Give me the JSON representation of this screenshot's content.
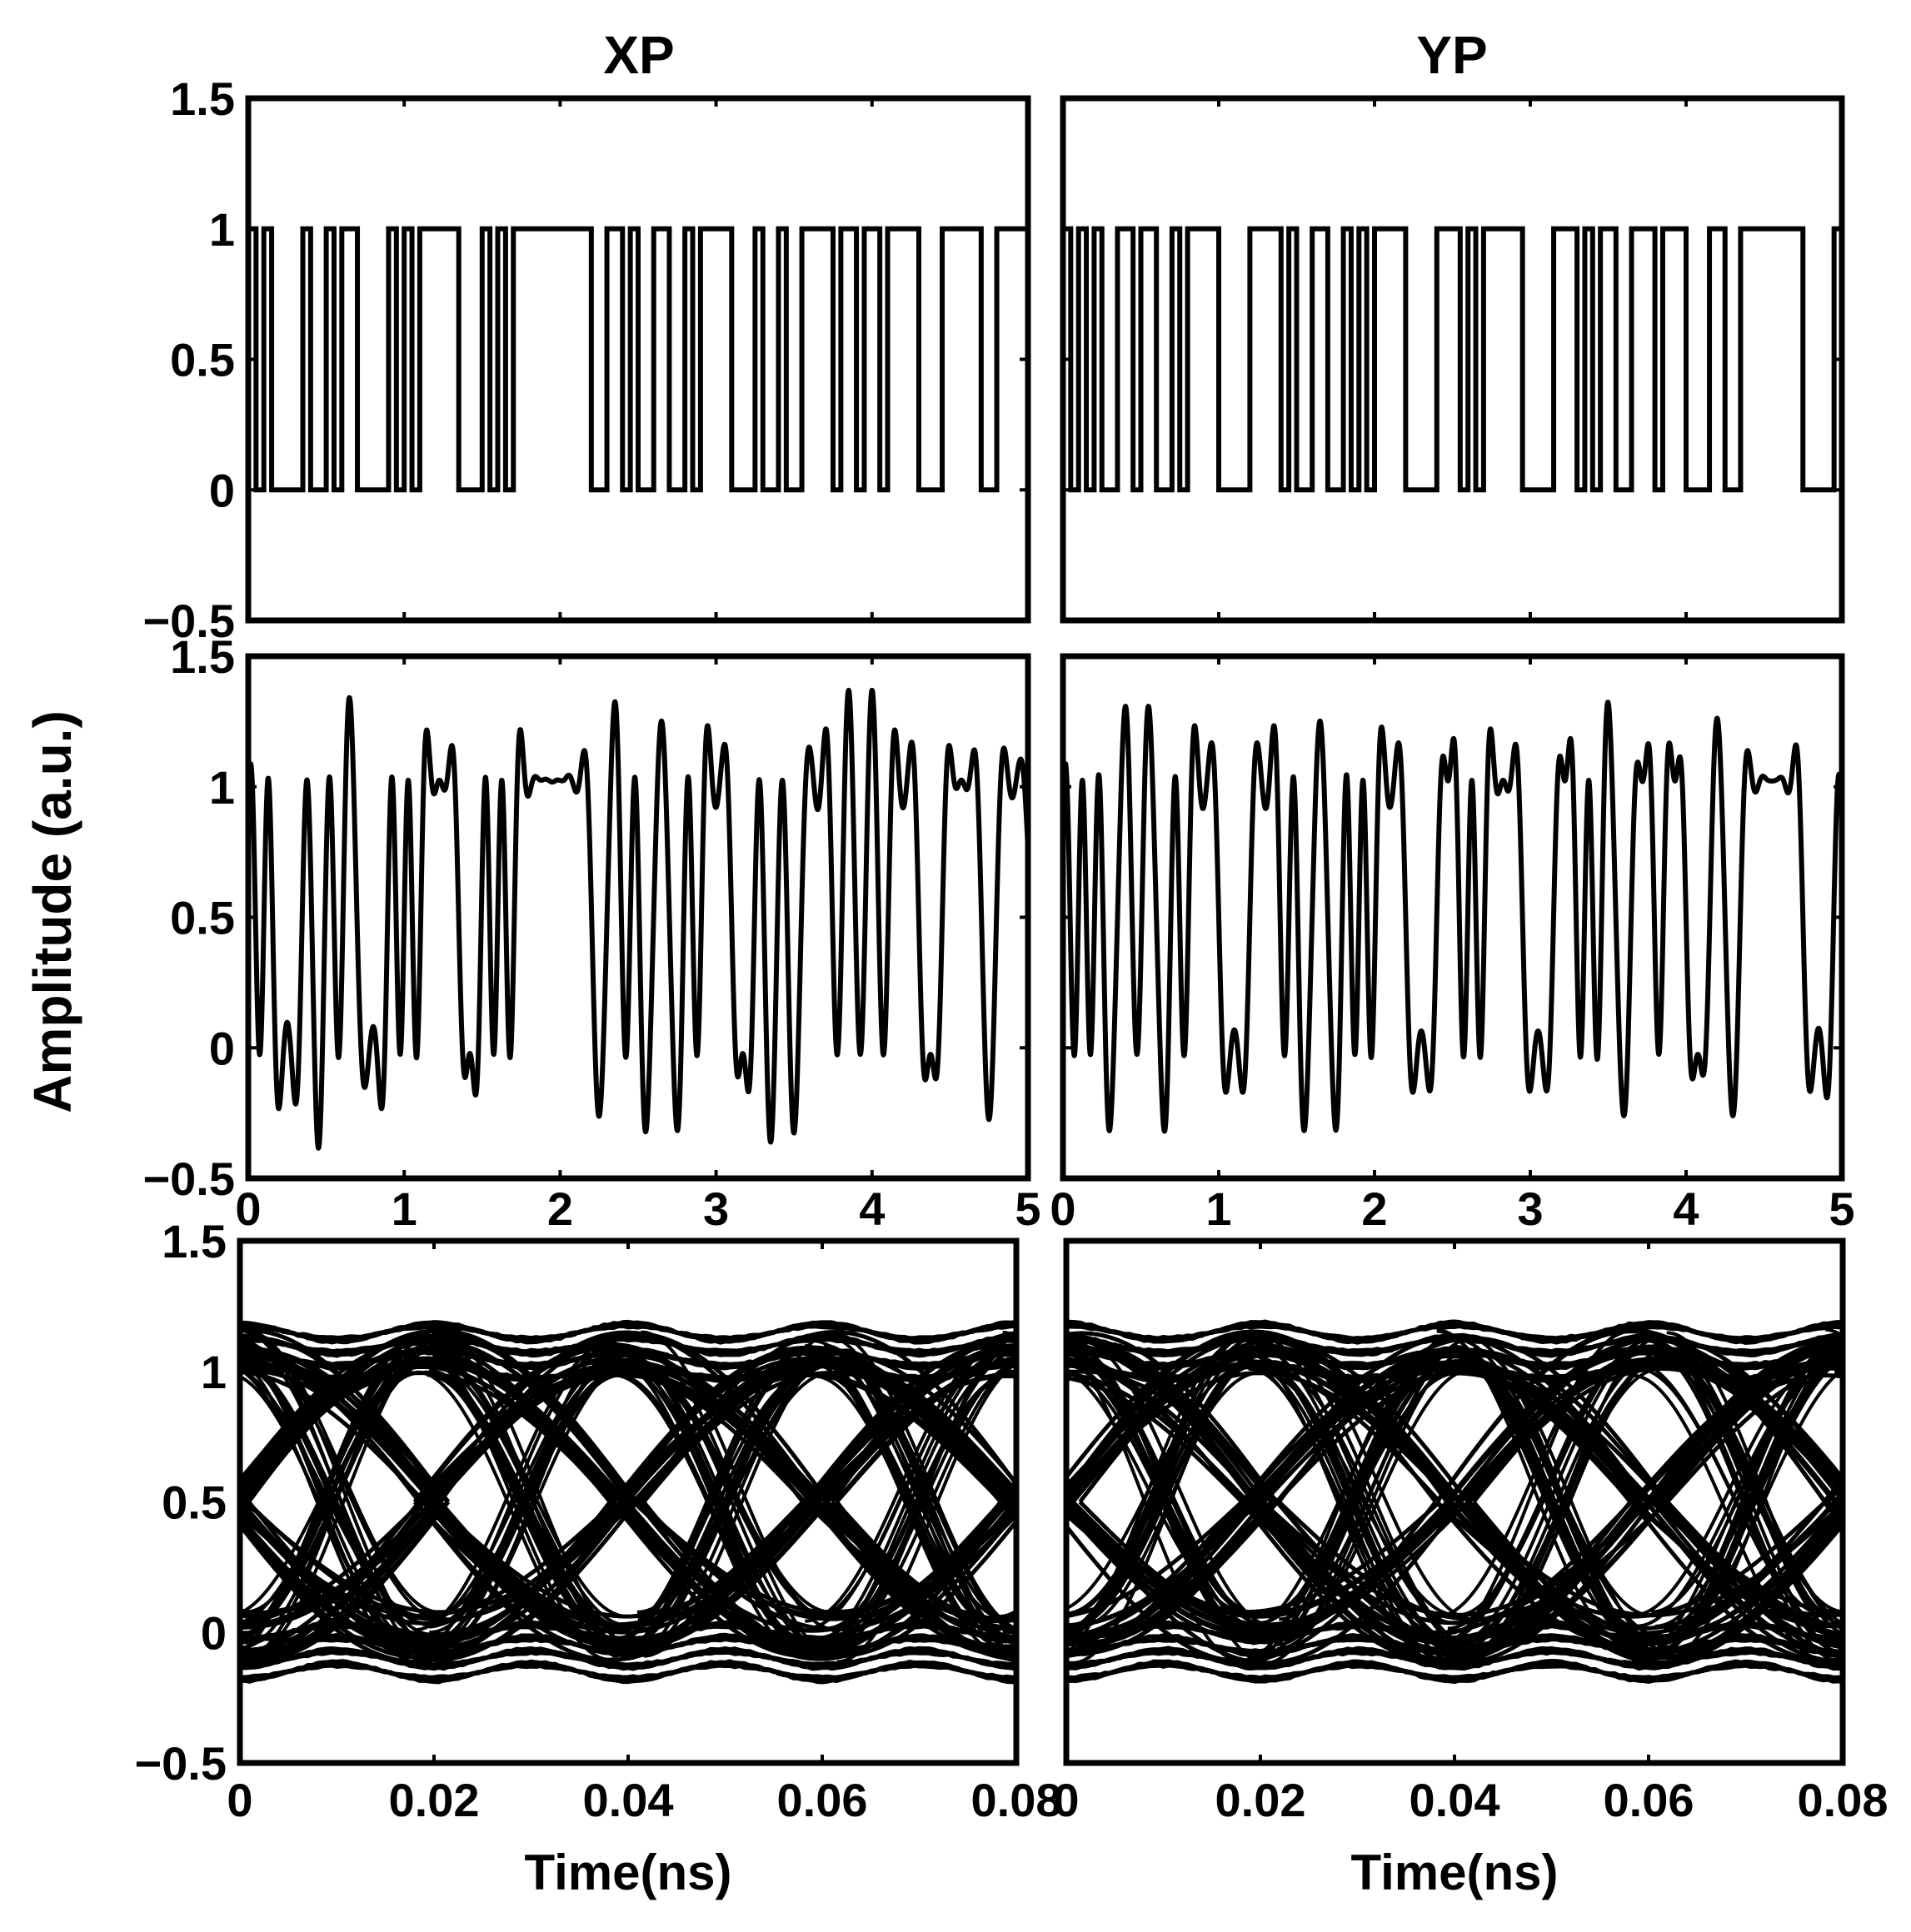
{
  "figure": {
    "ylabel": "Amplitude (a.u.)",
    "columns": [
      "XP",
      "YP"
    ],
    "line_color": "#000000",
    "background": "#ffffff"
  },
  "chart_data": [
    {
      "id": "xp-bits",
      "type": "line",
      "title": "XP",
      "xlim": [
        0,
        5
      ],
      "ylim": [
        -0.5,
        1.5
      ],
      "yticks": [
        -0.5,
        0,
        0.5,
        1,
        1.5
      ],
      "ytick_labels": [
        "−0.5",
        "0",
        "0.5",
        "1",
        "1.5"
      ],
      "xticks": [
        0,
        1,
        2,
        3,
        4,
        5
      ],
      "xtick_labels": [],
      "grid": false,
      "series": [
        {
          "style": "step",
          "bit_period": 0.05,
          "values": [
            1,
            0,
            1,
            0,
            0,
            0,
            0,
            1,
            0,
            0,
            1,
            0,
            1,
            1,
            0,
            0,
            0,
            0,
            1,
            0,
            1,
            0,
            1,
            1,
            1,
            1,
            1,
            0,
            0,
            0,
            1,
            0,
            1,
            0,
            1,
            1,
            1,
            1,
            1,
            1,
            1,
            1,
            1,
            1,
            0,
            0,
            1,
            1,
            0,
            1,
            0,
            0,
            1,
            1,
            0,
            0,
            1,
            0,
            1,
            1,
            1,
            1,
            0,
            0,
            0,
            1,
            0,
            0,
            1,
            0,
            0,
            1,
            1,
            1,
            1,
            0,
            1,
            1,
            0,
            1,
            1,
            0,
            1,
            1,
            1,
            1,
            0,
            0,
            0,
            1,
            1,
            1,
            1,
            1,
            0,
            0,
            1,
            1,
            1,
            1
          ]
        }
      ]
    },
    {
      "id": "yp-bits",
      "type": "line",
      "title": "YP",
      "xlim": [
        0,
        5
      ],
      "ylim": [
        -0.5,
        1.5
      ],
      "yticks": [
        -0.5,
        0,
        0.5,
        1,
        1.5
      ],
      "ytick_labels": [],
      "xticks": [
        0,
        1,
        2,
        3,
        4,
        5
      ],
      "xtick_labels": [],
      "grid": false,
      "series": [
        {
          "style": "step",
          "bit_period": 0.05,
          "values": [
            1,
            0,
            1,
            0,
            1,
            0,
            0,
            1,
            1,
            0,
            1,
            1,
            0,
            0,
            1,
            0,
            1,
            1,
            1,
            1,
            0,
            0,
            0,
            0,
            1,
            1,
            1,
            1,
            0,
            1,
            0,
            0,
            1,
            1,
            0,
            0,
            1,
            0,
            1,
            0,
            1,
            1,
            1,
            1,
            0,
            0,
            0,
            0,
            1,
            1,
            1,
            0,
            1,
            0,
            1,
            1,
            1,
            1,
            1,
            0,
            0,
            0,
            0,
            1,
            1,
            1,
            0,
            1,
            0,
            1,
            1,
            0,
            0,
            1,
            1,
            1,
            0,
            1,
            1,
            1,
            0,
            0,
            0,
            1,
            1,
            0,
            0,
            1,
            1,
            1,
            1,
            1,
            1,
            1,
            1,
            0,
            0,
            0,
            0,
            1
          ]
        }
      ]
    },
    {
      "id": "xp-filtered",
      "type": "line",
      "xlim": [
        0,
        5
      ],
      "ylim": [
        -0.5,
        1.5
      ],
      "yticks": [
        -0.5,
        0,
        0.5,
        1,
        1.5
      ],
      "ytick_labels": [
        "−0.5",
        "0",
        "0.5",
        "1",
        "1.5"
      ],
      "xticks": [
        0,
        1,
        2,
        3,
        4,
        5
      ],
      "xtick_labels": [
        "0",
        "1",
        "2",
        "3",
        "4",
        "5"
      ],
      "grid": false,
      "series": [
        {
          "style": "filtered",
          "bit_period": 0.05,
          "source": "xp-bits"
        }
      ]
    },
    {
      "id": "yp-filtered",
      "type": "line",
      "xlim": [
        0,
        5
      ],
      "ylim": [
        -0.5,
        1.5
      ],
      "yticks": [
        -0.5,
        0,
        0.5,
        1,
        1.5
      ],
      "ytick_labels": [],
      "xticks": [
        0,
        1,
        2,
        3,
        4,
        5
      ],
      "xtick_labels": [
        "0",
        "1",
        "2",
        "3",
        "4",
        "5"
      ],
      "grid": false,
      "series": [
        {
          "style": "filtered",
          "bit_period": 0.05,
          "source": "yp-bits"
        }
      ]
    },
    {
      "id": "xp-eye",
      "type": "line",
      "xlim": [
        0,
        0.08
      ],
      "ylim": [
        -0.5,
        1.5
      ],
      "yticks": [
        -0.5,
        0,
        0.5,
        1,
        1.5
      ],
      "ytick_labels": [
        "−0.5",
        "0",
        "0.5",
        "1",
        "1.5"
      ],
      "xticks": [
        0,
        0.02,
        0.04,
        0.06,
        0.08
      ],
      "xtick_labels": [
        "0",
        "0.02",
        "0.04",
        "0.06",
        "0.08"
      ],
      "xlabel": "Time(ns)",
      "grid": false,
      "series": [
        {
          "style": "eye",
          "crossings": [
            0,
            0.02,
            0.04,
            0.06,
            0.08
          ],
          "levels": [
            -0.15,
            -0.1,
            -0.05,
            0.0,
            1.0,
            1.05,
            1.1,
            1.15
          ],
          "crossing_level": 0.5
        }
      ]
    },
    {
      "id": "yp-eye",
      "type": "line",
      "xlim": [
        0,
        0.08
      ],
      "ylim": [
        -0.5,
        1.5
      ],
      "yticks": [
        -0.5,
        0,
        0.5,
        1,
        1.5
      ],
      "ytick_labels": [],
      "xticks": [
        0,
        0.02,
        0.04,
        0.06,
        0.08
      ],
      "xtick_labels": [
        "0",
        "0.02",
        "0.04",
        "0.06",
        "0.08"
      ],
      "xlabel": "Time(ns)",
      "grid": false,
      "series": [
        {
          "style": "eye",
          "crossings": [
            0,
            0.02,
            0.04,
            0.06,
            0.08
          ],
          "levels": [
            -0.15,
            -0.1,
            -0.05,
            0.0,
            1.0,
            1.05,
            1.1,
            1.15
          ],
          "crossing_level": 0.5
        }
      ]
    }
  ]
}
